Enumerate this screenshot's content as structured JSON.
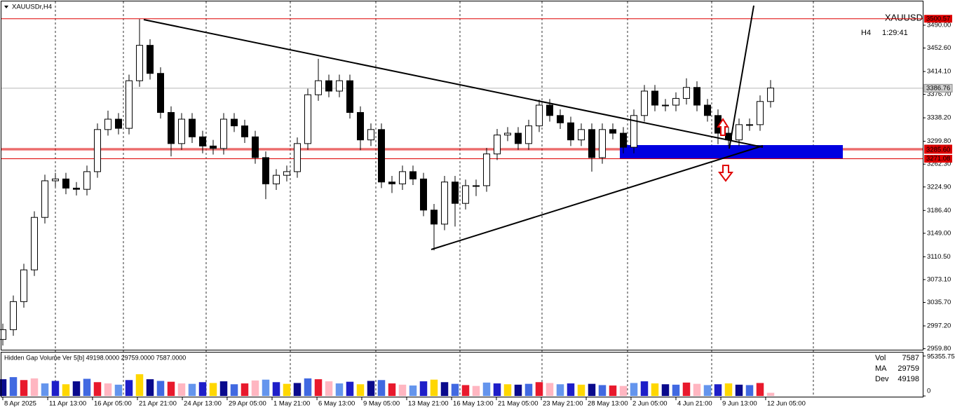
{
  "symbol_label": "XAUUSDr,H4",
  "timer": {
    "tf": "H4",
    "time": "1:29:41"
  },
  "watermark": "XAUUSD",
  "chart_data": [
    {
      "type": "candlestick",
      "open": [
        2975,
        2991,
        3037,
        3089,
        3175,
        3235,
        3238,
        3223,
        3221,
        3250,
        3319,
        3336,
        3321,
        3399,
        3457,
        3411,
        3347,
        3296,
        3336,
        3307,
        3292,
        3288,
        3336,
        3325,
        3307,
        3273,
        3230,
        3244,
        3250,
        3296,
        3376,
        3399,
        3382,
        3399,
        3347,
        3302,
        3319,
        3233,
        3230,
        3250,
        3238,
        3187,
        3164,
        3233,
        3198,
        3227,
        3227,
        3279,
        3310,
        3313,
        3296,
        3325,
        3359,
        3342,
        3330,
        3302,
        3319,
        3273,
        3319,
        3313,
        3290,
        3342,
        3382,
        3359,
        3359,
        3370,
        3388,
        3359,
        3342,
        3313,
        3302,
        3327,
        3327,
        3365
      ],
      "high": [
        3001,
        3047,
        3099,
        3185,
        3245,
        3248,
        3248,
        3233,
        3260,
        3329,
        3350,
        3346,
        3409,
        3500,
        3467,
        3421,
        3357,
        3346,
        3346,
        3317,
        3302,
        3346,
        3346,
        3335,
        3317,
        3283,
        3254,
        3260,
        3306,
        3386,
        3435,
        3409,
        3409,
        3409,
        3357,
        3329,
        3329,
        3243,
        3260,
        3260,
        3248,
        3197,
        3243,
        3243,
        3237,
        3237,
        3289,
        3320,
        3323,
        3323,
        3335,
        3368,
        3369,
        3352,
        3340,
        3329,
        3329,
        3329,
        3329,
        3323,
        3352,
        3392,
        3392,
        3369,
        3380,
        3403,
        3398,
        3369,
        3352,
        3323,
        3337,
        3337,
        3375,
        3400
      ],
      "low": [
        2965,
        2981,
        3027,
        3079,
        3165,
        3225,
        3213,
        3211,
        3211,
        3240,
        3309,
        3311,
        3311,
        3389,
        3401,
        3337,
        3275,
        3286,
        3297,
        3280,
        3278,
        3278,
        3315,
        3297,
        3263,
        3205,
        3220,
        3234,
        3240,
        3286,
        3366,
        3372,
        3372,
        3337,
        3285,
        3292,
        3223,
        3215,
        3220,
        3228,
        3177,
        3121,
        3154,
        3160,
        3188,
        3210,
        3217,
        3269,
        3300,
        3286,
        3286,
        3315,
        3332,
        3320,
        3292,
        3292,
        3250,
        3263,
        3303,
        3280,
        3280,
        3332,
        3349,
        3349,
        3349,
        3360,
        3349,
        3332,
        3295,
        3292,
        3292,
        3317,
        3317,
        3355
      ],
      "close": [
        2991,
        3037,
        3089,
        3175,
        3235,
        3238,
        3223,
        3221,
        3250,
        3319,
        3336,
        3321,
        3399,
        3457,
        3411,
        3347,
        3296,
        3336,
        3307,
        3292,
        3288,
        3336,
        3325,
        3307,
        3273,
        3230,
        3244,
        3250,
        3296,
        3376,
        3399,
        3382,
        3399,
        3347,
        3302,
        3319,
        3233,
        3230,
        3250,
        3238,
        3187,
        3164,
        3233,
        3198,
        3227,
        3227,
        3279,
        3310,
        3313,
        3296,
        3325,
        3359,
        3342,
        3330,
        3302,
        3319,
        3273,
        3319,
        3313,
        3290,
        3342,
        3382,
        3359,
        3359,
        3370,
        3388,
        3359,
        3342,
        3313,
        3302,
        3327,
        3327,
        3365,
        3387
      ],
      "up_color": "#ffffff",
      "down_color": "#000000",
      "wick_color": "#000000",
      "xlim": [
        0,
        87.5
      ],
      "xticks": [
        {
          "value": 0,
          "label": "8 Apr 2025"
        },
        {
          "value": 4.27,
          "label": "11 Apr 13:00"
        },
        {
          "value": 8.53,
          "label": "16 Apr 05:00"
        },
        {
          "value": 12.8,
          "label": "21 Apr 21:00"
        },
        {
          "value": 17.07,
          "label": "24 Apr 13:00"
        },
        {
          "value": 21.33,
          "label": "29 Apr 05:00"
        },
        {
          "value": 25.6,
          "label": "1 May 21:00"
        },
        {
          "value": 29.87,
          "label": "6 May 13:00"
        },
        {
          "value": 34.13,
          "label": "9 May 05:00"
        },
        {
          "value": 38.4,
          "label": "13 May 21:00"
        },
        {
          "value": 42.67,
          "label": "16 May 13:00"
        },
        {
          "value": 46.93,
          "label": "21 May 05:00"
        },
        {
          "value": 51.2,
          "label": "23 May 21:00"
        },
        {
          "value": 55.47,
          "label": "28 May 13:00"
        },
        {
          "value": 59.73,
          "label": "2 Jun 05:00"
        },
        {
          "value": 64,
          "label": "4 Jun 21:00"
        },
        {
          "value": 68.27,
          "label": "9 Jun 13:00"
        },
        {
          "value": 72.53,
          "label": "12 Jun 05:00"
        }
      ],
      "ylim": [
        2957,
        3529
      ],
      "yticks": [
        {
          "value": 3490,
          "label": "3490.00"
        },
        {
          "value": 3452.6,
          "label": "3452.60"
        },
        {
          "value": 3414.1,
          "label": "3414.10"
        },
        {
          "value": 3376.7,
          "label": "3376.70"
        },
        {
          "value": 3338.2,
          "label": "3338.20"
        },
        {
          "value": 3299.8,
          "label": "3299.80"
        },
        {
          "value": 3262.3,
          "label": "3262.30"
        },
        {
          "value": 3224.9,
          "label": "3224.90"
        },
        {
          "value": 3186.4,
          "label": "3186.40"
        },
        {
          "value": 3149,
          "label": "3149.00"
        },
        {
          "value": 3110.5,
          "label": "3110.50"
        },
        {
          "value": 3073.1,
          "label": "3073.10"
        },
        {
          "value": 3035.7,
          "label": "3035.70"
        },
        {
          "value": 2997.2,
          "label": "2997.20"
        },
        {
          "value": 2959.8,
          "label": "2959.80"
        }
      ],
      "levels": [
        3500.57,
        3287.85,
        {
          "value": 3285.6,
          "label": "3285.60"
        },
        3271.08
      ],
      "level_color": "#dd0000",
      "current_price": 3386.76
    },
    {
      "type": "bar",
      "title": "Hidden Gap Volume Ver 5[b] 49198.0000 29759.0000 7587.0000",
      "values": [
        40000,
        45000,
        38000,
        42000,
        30000,
        36000,
        28000,
        35000,
        41000,
        33000,
        30000,
        27000,
        38000,
        52000,
        40000,
        36000,
        34000,
        30000,
        29000,
        33000,
        31000,
        35000,
        28000,
        30000,
        37000,
        39000,
        33000,
        29000,
        31000,
        42000,
        40000,
        35000,
        30000,
        34000,
        28000,
        36000,
        38000,
        30000,
        27000,
        25000,
        35000,
        39000,
        33000,
        29000,
        26000,
        24000,
        32000,
        30000,
        28000,
        27000,
        29000,
        33000,
        31000,
        28000,
        30000,
        27000,
        29000,
        26000,
        25000,
        24000,
        31000,
        35000,
        30000,
        28000,
        27000,
        32000,
        29000,
        26000,
        28000,
        30000,
        27000,
        26000,
        31000,
        7587
      ],
      "colors": [
        "#0a0a8c",
        "#4169e1",
        "#e8192c",
        "#ffb6c1",
        "#6495ed",
        "#1e1ec8",
        "#ffd700"
      ],
      "ylim": [
        0,
        95355.75
      ],
      "yticks": [
        95355.75,
        0
      ],
      "legend": [
        {
          "name": "Vol",
          "value": 7587,
          "color": "#d8d800"
        },
        {
          "name": "MA",
          "value": 29759,
          "color": "#2e8b00"
        },
        {
          "name": "Dev",
          "value": 49198,
          "color": "#2a6ab0"
        }
      ]
    }
  ]
}
